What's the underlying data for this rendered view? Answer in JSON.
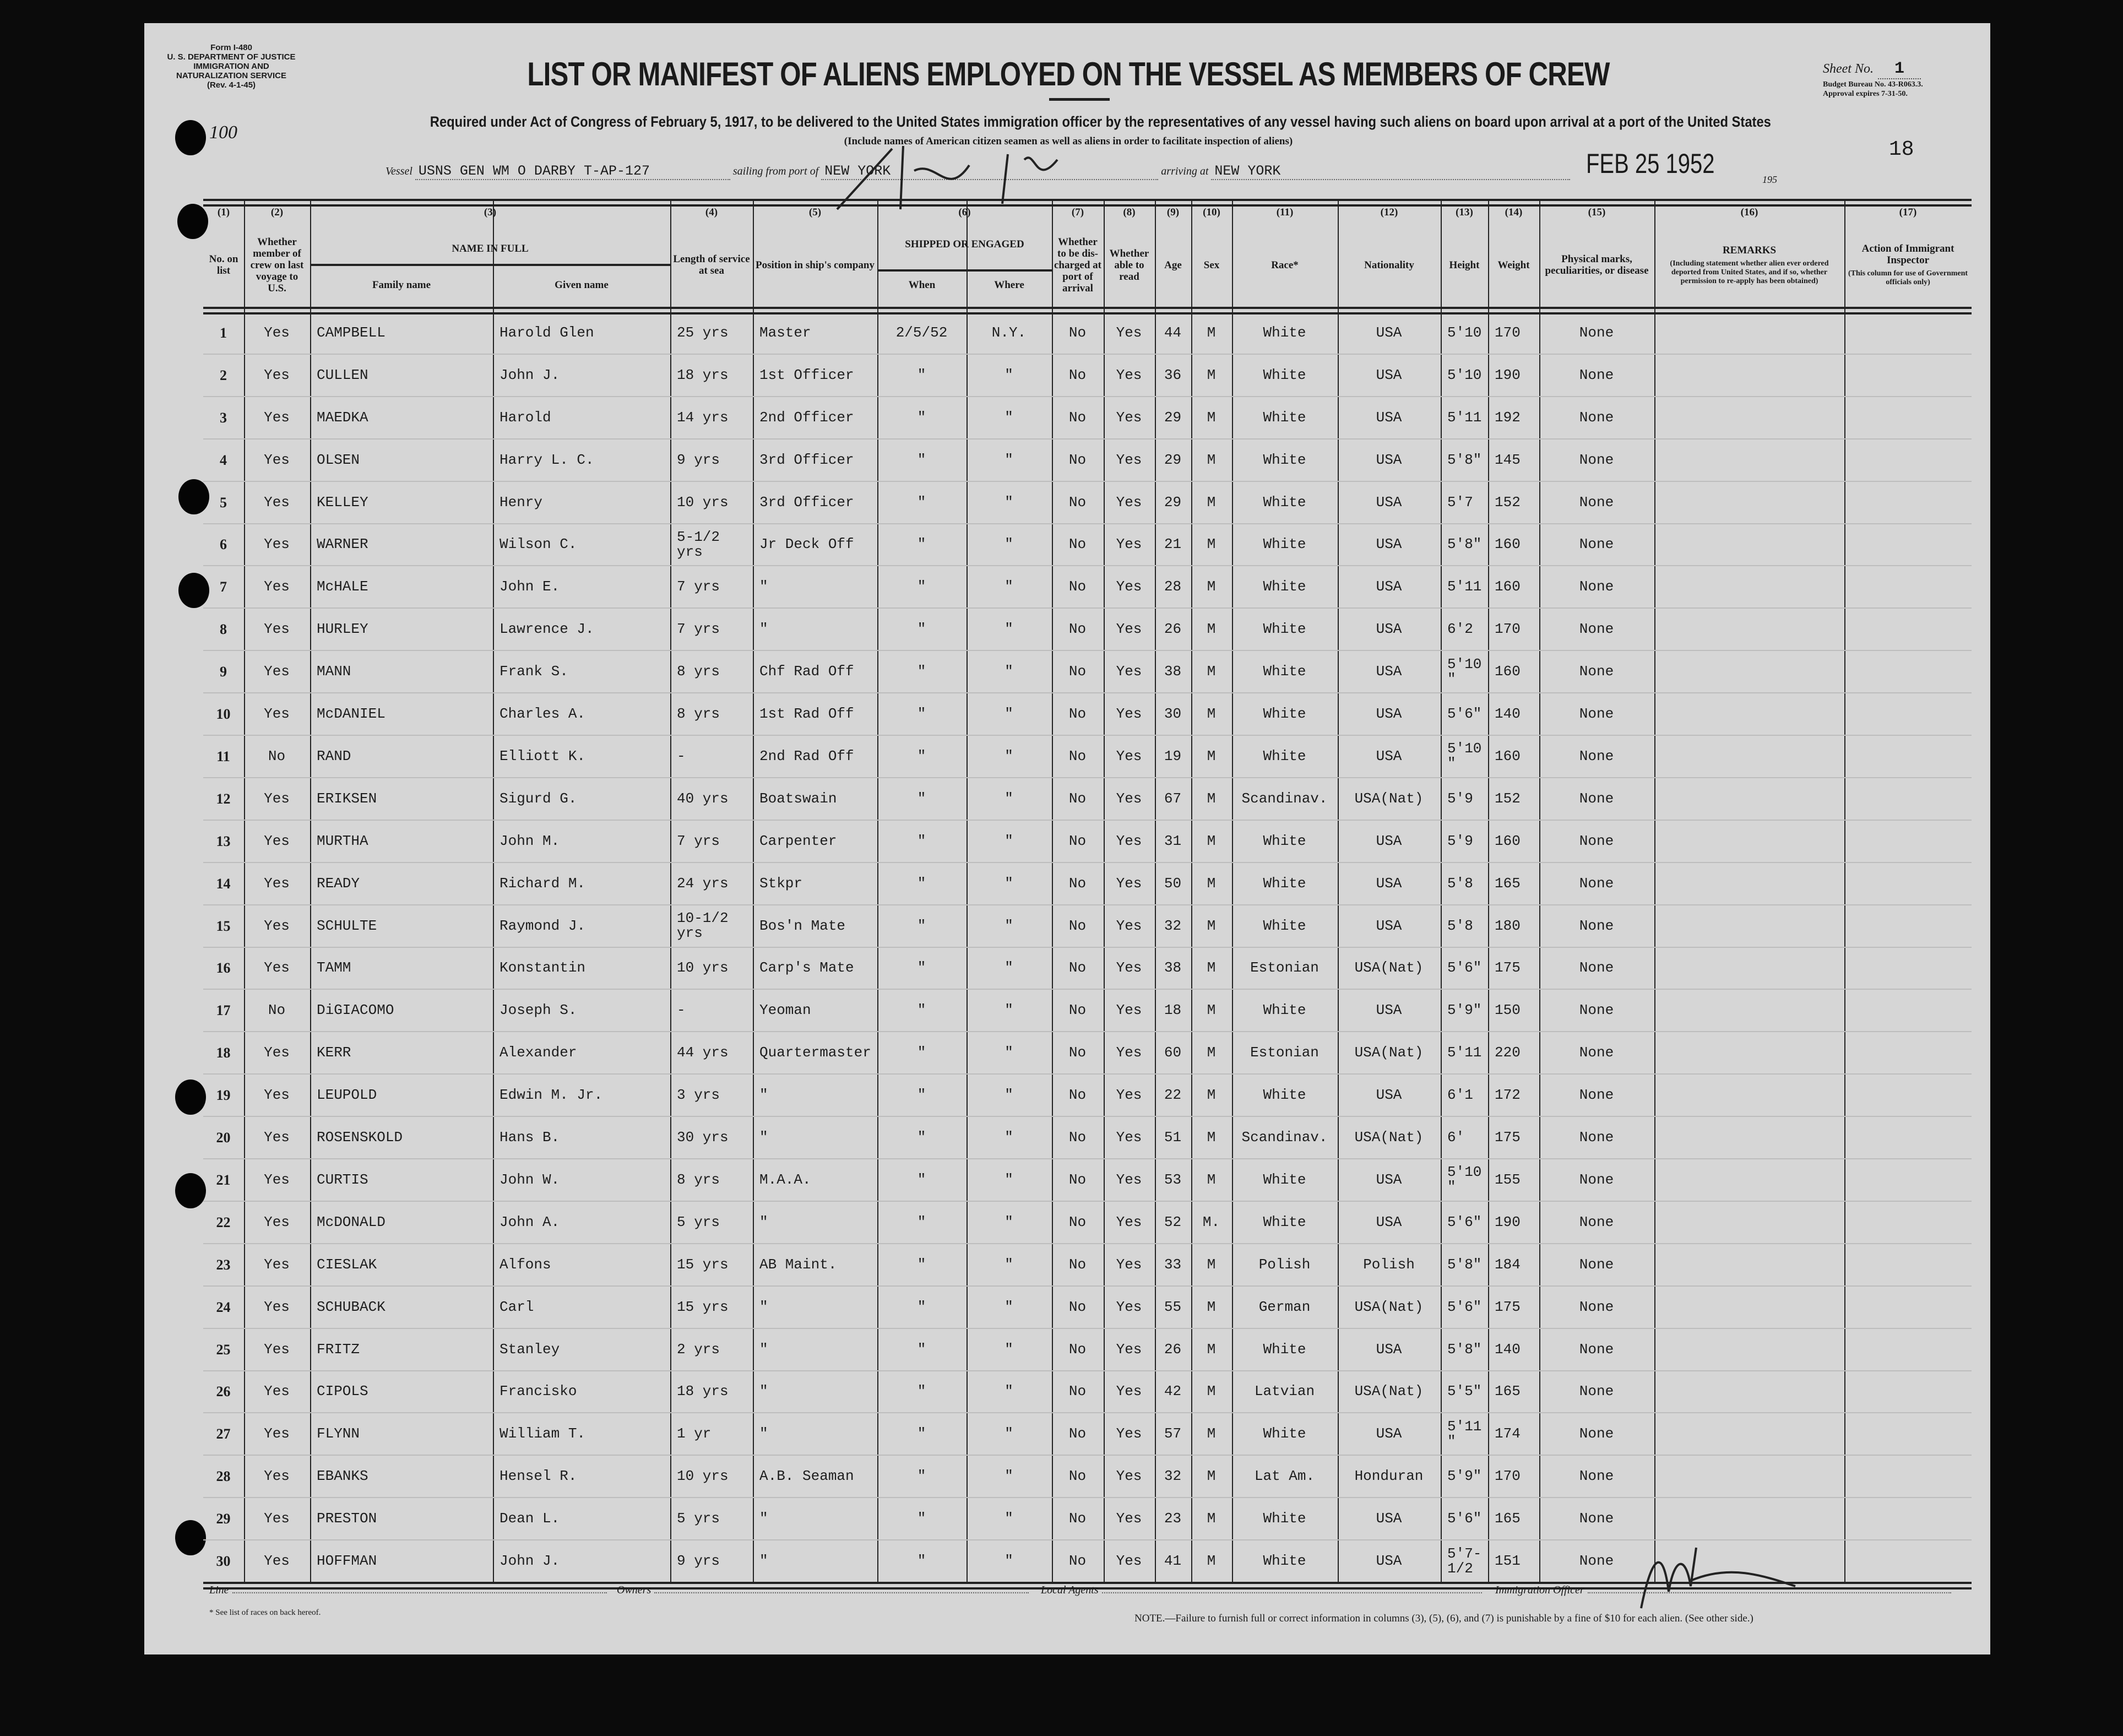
{
  "form": {
    "form_number": "Form I-480",
    "department": "U. S. DEPARTMENT OF JUSTICE",
    "service": "IMMIGRATION AND NATURALIZATION SERVICE",
    "revision": "(Rev. 4-1-45)",
    "title": "LIST OR MANIFEST OF ALIENS EMPLOYED ON THE VESSEL AS MEMBERS OF CREW",
    "sheet_label": "Sheet No.",
    "sheet_no": "1",
    "budget_bureau": "Budget Bureau No. 43-R063.3.",
    "approval": "Approval expires 7-31-50.",
    "required_text": "Required under Act of Congress of February 5, 1917, to be delivered to the United States immigration officer by the representatives of any vessel having such aliens on board upon arrival at a port of the United States",
    "include_text": "(Include names of American citizen seamen as well as aliens in order to facilitate inspection of aliens)",
    "page_mark": "18",
    "margin_note": "100"
  },
  "voyage": {
    "vessel_label": "Vessel",
    "vessel": "USNS GEN WM O DARBY T-AP-127",
    "sailing_label": "sailing from port of",
    "sailing_port": "NEW YORK",
    "arriving_label": "arriving at",
    "arriving_port": "NEW YORK",
    "date_stamp": "FEB 25 1952",
    "year_prefix": "195"
  },
  "headers": {
    "nums": [
      "(1)",
      "(2)",
      "(3)",
      "(4)",
      "(5)",
      "(6)",
      "(7)",
      "(8)",
      "(9)",
      "(10)",
      "(11)",
      "(12)",
      "(13)",
      "(14)",
      "(15)",
      "(16)",
      "(17)"
    ],
    "no_on_list": "No. on list",
    "member": "Whether member of crew on last voyage to U.S.",
    "name_in_full": "NAME IN FULL",
    "family_name": "Family name",
    "given_name": "Given name",
    "length": "Length of service at sea",
    "position": "Position in ship's company",
    "shipped": "SHIPPED OR ENGAGED",
    "when": "When",
    "where": "Where",
    "discharged": "Whether to be dis-charged at port of arrival",
    "read": "Whether able to read",
    "age": "Age",
    "sex": "Sex",
    "race": "Race*",
    "nationality": "Nationality",
    "height": "Height",
    "weight": "Weight",
    "marks": "Physical marks, peculiarities, or disease",
    "remarks": "REMARKS",
    "remarks_sub": "(Including statement whether alien ever ordered deported from United States, and if so, whether permission to re-apply has been obtained)",
    "action": "Action of Immigrant Inspector",
    "action_sub": "(This column for use of Government officials only)"
  },
  "rows": [
    [
      "1",
      "Yes",
      "CAMPBELL",
      "Harold Glen",
      "25 yrs",
      "Master",
      "2/5/52",
      "N.Y.",
      "No",
      "Yes",
      "44",
      "M",
      "White",
      "USA",
      "5'10",
      "170",
      "None"
    ],
    [
      "2",
      "Yes",
      "CULLEN",
      "John J.",
      "18 yrs",
      "1st Officer",
      "\"",
      "\"",
      "No",
      "Yes",
      "36",
      "M",
      "White",
      "USA",
      "5'10",
      "190",
      "None"
    ],
    [
      "3",
      "Yes",
      "MAEDKA",
      "Harold",
      "14 yrs",
      "2nd Officer",
      "\"",
      "\"",
      "No",
      "Yes",
      "29",
      "M",
      "White",
      "USA",
      "5'11",
      "192",
      "None"
    ],
    [
      "4",
      "Yes",
      "OLSEN",
      "Harry L. C.",
      "9 yrs",
      "3rd Officer",
      "\"",
      "\"",
      "No",
      "Yes",
      "29",
      "M",
      "White",
      "USA",
      "5'8\"",
      "145",
      "None"
    ],
    [
      "5",
      "Yes",
      "KELLEY",
      "Henry",
      "10 yrs",
      "3rd Officer",
      "\"",
      "\"",
      "No",
      "Yes",
      "29",
      "M",
      "White",
      "USA",
      "5'7",
      "152",
      "None"
    ],
    [
      "6",
      "Yes",
      "WARNER",
      "Wilson C.",
      "5-1/2 yrs",
      "Jr Deck Off",
      "\"",
      "\"",
      "No",
      "Yes",
      "21",
      "M",
      "White",
      "USA",
      "5'8\"",
      "160",
      "None"
    ],
    [
      "7",
      "Yes",
      "McHALE",
      "John E.",
      "7 yrs",
      "\"",
      "\"",
      "\"",
      "No",
      "Yes",
      "28",
      "M",
      "White",
      "USA",
      "5'11",
      "160",
      "None"
    ],
    [
      "8",
      "Yes",
      "HURLEY",
      "Lawrence J.",
      "7 yrs",
      "\"",
      "\"",
      "\"",
      "No",
      "Yes",
      "26",
      "M",
      "White",
      "USA",
      "6'2",
      "170",
      "None"
    ],
    [
      "9",
      "Yes",
      "MANN",
      "Frank S.",
      "8 yrs",
      "Chf Rad Off",
      "\"",
      "\"",
      "No",
      "Yes",
      "38",
      "M",
      "White",
      "USA",
      "5'10\"",
      "160",
      "None"
    ],
    [
      "10",
      "Yes",
      "McDANIEL",
      "Charles A.",
      "8 yrs",
      "1st Rad Off",
      "\"",
      "\"",
      "No",
      "Yes",
      "30",
      "M",
      "White",
      "USA",
      "5'6\"",
      "140",
      "None"
    ],
    [
      "11",
      "No",
      "RAND",
      "Elliott K.",
      "-",
      "2nd Rad Off",
      "\"",
      "\"",
      "No",
      "Yes",
      "19",
      "M",
      "White",
      "USA",
      "5'10\"",
      "160",
      "None"
    ],
    [
      "12",
      "Yes",
      "ERIKSEN",
      "Sigurd G.",
      "40 yrs",
      "Boatswain",
      "\"",
      "\"",
      "No",
      "Yes",
      "67",
      "M",
      "Scandinav.",
      "USA(Nat)",
      "5'9",
      "152",
      "None"
    ],
    [
      "13",
      "Yes",
      "MURTHA",
      "John M.",
      "7 yrs",
      "Carpenter",
      "\"",
      "\"",
      "No",
      "Yes",
      "31",
      "M",
      "White",
      "USA",
      "5'9",
      "160",
      "None"
    ],
    [
      "14",
      "Yes",
      "READY",
      "Richard M.",
      "24 yrs",
      "Stkpr",
      "\"",
      "\"",
      "No",
      "Yes",
      "50",
      "M",
      "White",
      "USA",
      "5'8",
      "165",
      "None"
    ],
    [
      "15",
      "Yes",
      "SCHULTE",
      "Raymond J.",
      "10-1/2 yrs",
      "Bos'n Mate",
      "\"",
      "\"",
      "No",
      "Yes",
      "32",
      "M",
      "White",
      "USA",
      "5'8",
      "180",
      "None"
    ],
    [
      "16",
      "Yes",
      "TAMM",
      "Konstantin",
      "10 yrs",
      "Carp's Mate",
      "\"",
      "\"",
      "No",
      "Yes",
      "38",
      "M",
      "Estonian",
      "USA(Nat)",
      "5'6\"",
      "175",
      "None"
    ],
    [
      "17",
      "No",
      "DiGIACOMO",
      "Joseph S.",
      "-",
      "Yeoman",
      "\"",
      "\"",
      "No",
      "Yes",
      "18",
      "M",
      "White",
      "USA",
      "5'9\"",
      "150",
      "None"
    ],
    [
      "18",
      "Yes",
      "KERR",
      "Alexander",
      "44 yrs",
      "Quartermaster",
      "\"",
      "\"",
      "No",
      "Yes",
      "60",
      "M",
      "Estonian",
      "USA(Nat)",
      "5'11",
      "220",
      "None"
    ],
    [
      "19",
      "Yes",
      "LEUPOLD",
      "Edwin M. Jr.",
      "3 yrs",
      "\"",
      "\"",
      "\"",
      "No",
      "Yes",
      "22",
      "M",
      "White",
      "USA",
      "6'1",
      "172",
      "None"
    ],
    [
      "20",
      "Yes",
      "ROSENSKOLD",
      "Hans B.",
      "30 yrs",
      "\"",
      "\"",
      "\"",
      "No",
      "Yes",
      "51",
      "M",
      "Scandinav.",
      "USA(Nat)",
      "6'",
      "175",
      "None"
    ],
    [
      "21",
      "Yes",
      "CURTIS",
      "John W.",
      "8 yrs",
      "M.A.A.",
      "\"",
      "\"",
      "No",
      "Yes",
      "53",
      "M",
      "White",
      "USA",
      "5'10\"",
      "155",
      "None"
    ],
    [
      "22",
      "Yes",
      "McDONALD",
      "John A.",
      "5 yrs",
      "\"",
      "\"",
      "\"",
      "No",
      "Yes",
      "52",
      "M.",
      "White",
      "USA",
      "5'6\"",
      "190",
      "None"
    ],
    [
      "23",
      "Yes",
      "CIESLAK",
      "Alfons",
      "15 yrs",
      "AB Maint.",
      "\"",
      "\"",
      "No",
      "Yes",
      "33",
      "M",
      "Polish",
      "Polish",
      "5'8\"",
      "184",
      "None"
    ],
    [
      "24",
      "Yes",
      "SCHUBACK",
      "Carl",
      "15 yrs",
      "\"",
      "\"",
      "\"",
      "No",
      "Yes",
      "55",
      "M",
      "German",
      "USA(Nat)",
      "5'6\"",
      "175",
      "None"
    ],
    [
      "25",
      "Yes",
      "FRITZ",
      "Stanley",
      "2 yrs",
      "\"",
      "\"",
      "\"",
      "No",
      "Yes",
      "26",
      "M",
      "White",
      "USA",
      "5'8\"",
      "140",
      "None"
    ],
    [
      "26",
      "Yes",
      "CIPOLS",
      "Francisko",
      "18 yrs",
      "\"",
      "\"",
      "\"",
      "No",
      "Yes",
      "42",
      "M",
      "Latvian",
      "USA(Nat)",
      "5'5\"",
      "165",
      "None"
    ],
    [
      "27",
      "Yes",
      "FLYNN",
      "William T.",
      "1 yr",
      "\"",
      "\"",
      "\"",
      "No",
      "Yes",
      "57",
      "M",
      "White",
      "USA",
      "5'11\"",
      "174",
      "None"
    ],
    [
      "28",
      "Yes",
      "EBANKS",
      "Hensel R.",
      "10 yrs",
      "A.B. Seaman",
      "\"",
      "\"",
      "No",
      "Yes",
      "32",
      "M",
      "Lat Am.",
      "Honduran",
      "5'9\"",
      "170",
      "None"
    ],
    [
      "29",
      "Yes",
      "PRESTON",
      "Dean L.",
      "5 yrs",
      "\"",
      "\"",
      "\"",
      "No",
      "Yes",
      "23",
      "M",
      "White",
      "USA",
      "5'6\"",
      "165",
      "None"
    ],
    [
      "30",
      "Yes",
      "HOFFMAN",
      "John J.",
      "9 yrs",
      "\"",
      "\"",
      "\"",
      "No",
      "Yes",
      "41",
      "M",
      "White",
      "USA",
      "5'7-1/2",
      "151",
      "None"
    ]
  ],
  "footer": {
    "line_label": "Line",
    "owners_label": "Owners",
    "agents_label": "Local Agents",
    "officer_label": "Immigration Officer",
    "races_note": "* See list of races on back hereof.",
    "note": "NOTE.—Failure to furnish full or correct information in columns (3), (5), (6), and (7) is punishable by a fine of $10 for each alien.   (See other side.)"
  }
}
